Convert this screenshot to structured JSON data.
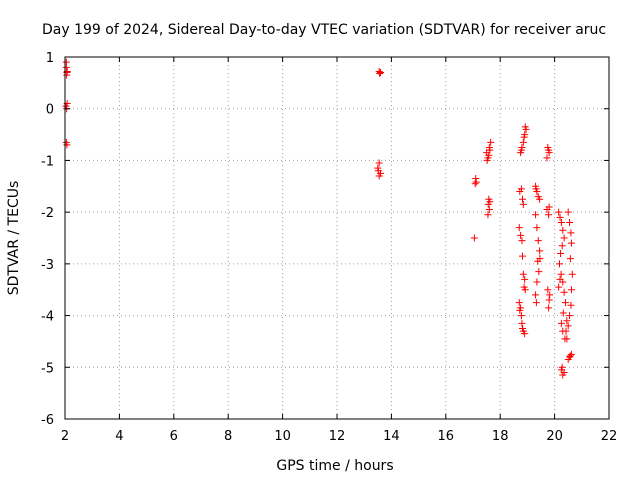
{
  "chart_data": {
    "type": "scatter",
    "title": "Day 199 of 2024, Sidereal Day-to-day VTEC variation (SDTVAR) for receiver aruc",
    "xlabel": "GPS time / hours",
    "ylabel": "SDTVAR / TECUs",
    "xlim": [
      2,
      22
    ],
    "ylim": [
      -6,
      1
    ],
    "xticks": [
      "2",
      "4",
      "6",
      "8",
      "10",
      "12",
      "14",
      "16",
      "18",
      "20",
      "22"
    ],
    "yticks": [
      "1",
      "0",
      "-1",
      "-2",
      "-3",
      "-4",
      "-5",
      "-6"
    ],
    "grid": true,
    "marker": "+",
    "color": "#ff0000",
    "points": [
      [
        2.05,
        0.9
      ],
      [
        2.05,
        0.8
      ],
      [
        2.07,
        0.7
      ],
      [
        2.06,
        0.65
      ],
      [
        2.08,
        0.72
      ],
      [
        2.04,
        0.05
      ],
      [
        2.06,
        0.0
      ],
      [
        2.08,
        0.1
      ],
      [
        2.05,
        -0.65
      ],
      [
        2.07,
        -0.7
      ],
      [
        13.55,
        0.72
      ],
      [
        13.6,
        0.7
      ],
      [
        13.57,
        0.68
      ],
      [
        13.5,
        -1.15
      ],
      [
        13.55,
        -1.05
      ],
      [
        13.6,
        -1.25
      ],
      [
        13.55,
        -1.3
      ],
      [
        13.52,
        -1.2
      ],
      [
        17.1,
        -1.35
      ],
      [
        17.12,
        -1.42
      ],
      [
        17.08,
        -1.45
      ],
      [
        17.05,
        -2.5
      ],
      [
        17.5,
        -0.85
      ],
      [
        17.55,
        -0.95
      ],
      [
        17.6,
        -0.75
      ],
      [
        17.65,
        -0.65
      ],
      [
        17.58,
        -0.9
      ],
      [
        17.52,
        -1.0
      ],
      [
        17.62,
        -0.8
      ],
      [
        17.56,
        -1.85
      ],
      [
        17.6,
        -1.95
      ],
      [
        17.55,
        -2.05
      ],
      [
        17.62,
        -1.8
      ],
      [
        17.58,
        -1.75
      ],
      [
        18.75,
        -0.85
      ],
      [
        18.8,
        -0.75
      ],
      [
        18.85,
        -0.65
      ],
      [
        18.9,
        -0.5
      ],
      [
        18.95,
        -0.4
      ],
      [
        18.78,
        -0.8
      ],
      [
        18.88,
        -0.55
      ],
      [
        18.92,
        -0.35
      ],
      [
        18.72,
        -1.6
      ],
      [
        18.78,
        -1.55
      ],
      [
        18.82,
        -1.75
      ],
      [
        18.85,
        -1.85
      ],
      [
        18.7,
        -2.3
      ],
      [
        18.75,
        -2.45
      ],
      [
        18.8,
        -2.55
      ],
      [
        18.82,
        -2.85
      ],
      [
        18.85,
        -3.2
      ],
      [
        18.9,
        -3.3
      ],
      [
        18.88,
        -3.45
      ],
      [
        18.92,
        -3.5
      ],
      [
        18.7,
        -3.75
      ],
      [
        18.75,
        -3.85
      ],
      [
        18.78,
        -4.0
      ],
      [
        18.8,
        -4.15
      ],
      [
        18.85,
        -4.3
      ],
      [
        18.9,
        -4.35
      ],
      [
        18.72,
        -3.9
      ],
      [
        18.82,
        -4.25
      ],
      [
        19.3,
        -1.5
      ],
      [
        19.35,
        -1.6
      ],
      [
        19.4,
        -1.7
      ],
      [
        19.45,
        -1.75
      ],
      [
        19.32,
        -1.55
      ],
      [
        19.3,
        -2.05
      ],
      [
        19.35,
        -2.3
      ],
      [
        19.4,
        -2.55
      ],
      [
        19.45,
        -2.75
      ],
      [
        19.38,
        -2.95
      ],
      [
        19.42,
        -3.15
      ],
      [
        19.35,
        -3.35
      ],
      [
        19.3,
        -3.6
      ],
      [
        19.33,
        -3.75
      ],
      [
        19.46,
        -2.9
      ],
      [
        19.75,
        -0.75
      ],
      [
        19.8,
        -0.85
      ],
      [
        19.72,
        -0.95
      ],
      [
        19.78,
        -0.8
      ],
      [
        19.72,
        -1.95
      ],
      [
        19.78,
        -2.05
      ],
      [
        19.8,
        -1.9
      ],
      [
        19.75,
        -3.5
      ],
      [
        19.8,
        -3.7
      ],
      [
        19.78,
        -3.85
      ],
      [
        19.82,
        -3.6
      ],
      [
        20.15,
        -2.0
      ],
      [
        20.2,
        -2.1
      ],
      [
        20.25,
        -2.2
      ],
      [
        20.3,
        -2.35
      ],
      [
        20.35,
        -2.5
      ],
      [
        20.28,
        -2.65
      ],
      [
        20.22,
        -2.8
      ],
      [
        20.18,
        -3.0
      ],
      [
        20.24,
        -3.2
      ],
      [
        20.3,
        -3.35
      ],
      [
        20.35,
        -3.55
      ],
      [
        20.4,
        -3.75
      ],
      [
        20.32,
        -3.95
      ],
      [
        20.25,
        -4.15
      ],
      [
        20.3,
        -4.3
      ],
      [
        20.38,
        -4.45
      ],
      [
        20.42,
        -4.3
      ],
      [
        20.45,
        -4.1
      ],
      [
        20.15,
        -3.45
      ],
      [
        20.2,
        -3.3
      ],
      [
        20.25,
        -5.05
      ],
      [
        20.3,
        -5.15
      ],
      [
        20.35,
        -5.1
      ],
      [
        20.28,
        -5.0
      ],
      [
        20.5,
        -2.0
      ],
      [
        20.55,
        -2.2
      ],
      [
        20.6,
        -2.4
      ],
      [
        20.62,
        -2.6
      ],
      [
        20.58,
        -2.9
      ],
      [
        20.65,
        -3.2
      ],
      [
        20.62,
        -3.5
      ],
      [
        20.6,
        -3.8
      ],
      [
        20.55,
        -4.0
      ],
      [
        20.5,
        -4.2
      ],
      [
        20.45,
        -4.45
      ],
      [
        20.5,
        -4.85
      ],
      [
        20.55,
        -4.8
      ],
      [
        20.62,
        -4.75
      ],
      [
        20.58,
        -4.78
      ]
    ]
  }
}
